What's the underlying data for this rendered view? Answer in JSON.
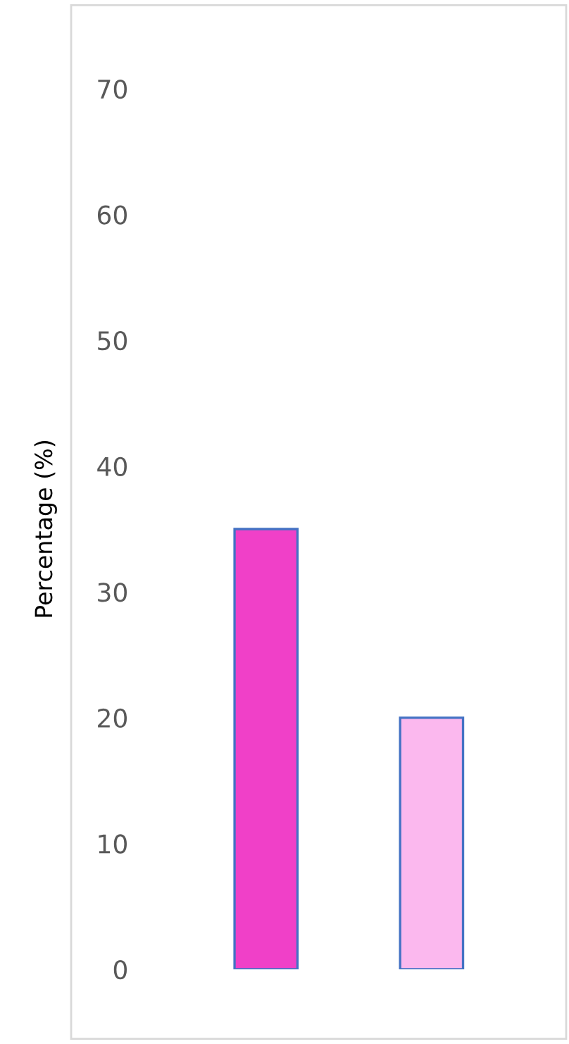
{
  "chart_data": {
    "type": "bar",
    "ylabel": "Percentage (%)",
    "categories": [
      null,
      null
    ],
    "values": [
      35,
      20
    ],
    "colors": [
      "#f040c8",
      "#fbb8ee"
    ],
    "ylim": [
      0,
      70
    ],
    "yticks": [
      0,
      10,
      20,
      30,
      40,
      50,
      60,
      70
    ],
    "grid": false,
    "legend": false
  }
}
